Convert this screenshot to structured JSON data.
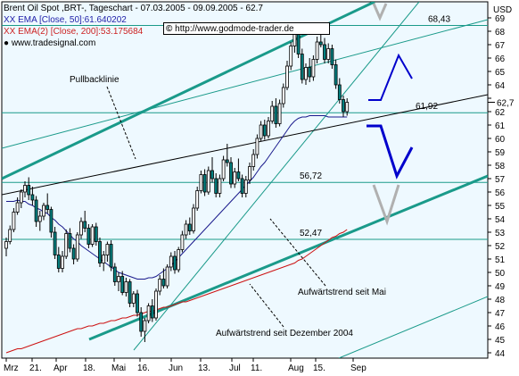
{
  "legend": {
    "title": "Brent Oil Spot ,BRT-, Tageschart - 07.03.2005 - 09.09.2005 - 62.7",
    "ema50": "XX EMA [Close, 50]:61.640202",
    "ema200": "XX EMA(2) [Close, 200]:53.175684",
    "brand": "www.tradesignal.com"
  },
  "copyright": {
    "symbol": "©",
    "url": "http://www.godmode-trader.de"
  },
  "colors": {
    "background": "#eef9ff",
    "candle_fill": "#008080",
    "candle_outline": "#000000",
    "teal_channel": "#1a9a8a",
    "ema50": "#1a1a8c",
    "ema200": "#cc1111",
    "arrow_blue": "#0000cc",
    "arrow_gray": "#b0b0b0"
  },
  "chart_data": {
    "type": "candlestick",
    "title": "Brent Oil Spot ,BRT-, Tageschart - 07.03.2005 - 09.09.2005 - 62.7",
    "ylabel": "USD",
    "ylim": [
      44,
      69
    ],
    "y_ticks": [
      44,
      45,
      46,
      47,
      48,
      49,
      50,
      51,
      52,
      53,
      54,
      55,
      56,
      57,
      58,
      59,
      60,
      61,
      62,
      63,
      64,
      65,
      66,
      67,
      68,
      69
    ],
    "x_tick_labels": [
      "Mrz",
      "21.",
      "Apr",
      "18.",
      "Mai",
      "16.",
      "Jun",
      "13.",
      "Jul",
      "11.",
      "Aug",
      "15.",
      "Sep"
    ],
    "last_price": 62.7,
    "series": [
      {
        "name": "Brent Oil Spot",
        "ohlc": [
          [
            51.8,
            52.6,
            51.2,
            52.3
          ],
          [
            52.3,
            53.5,
            52.1,
            53.2
          ],
          [
            53.2,
            54.8,
            53.0,
            54.5
          ],
          [
            54.5,
            55.6,
            54.3,
            55.2
          ],
          [
            55.2,
            56.2,
            54.8,
            56.0
          ],
          [
            56.0,
            56.8,
            55.6,
            56.5
          ],
          [
            56.5,
            57.1,
            55.4,
            55.8
          ],
          [
            55.8,
            56.4,
            55.0,
            55.4
          ],
          [
            55.4,
            55.7,
            53.4,
            53.8
          ],
          [
            53.8,
            54.6,
            53.1,
            54.2
          ],
          [
            54.2,
            55.2,
            53.9,
            55.0
          ],
          [
            55.0,
            55.9,
            54.4,
            54.7
          ],
          [
            54.7,
            54.9,
            52.6,
            53.0
          ],
          [
            53.0,
            53.4,
            51.0,
            51.3
          ],
          [
            51.3,
            51.9,
            50.0,
            50.3
          ],
          [
            50.3,
            51.6,
            50.0,
            51.2
          ],
          [
            51.2,
            53.2,
            51.0,
            52.9
          ],
          [
            52.9,
            53.3,
            51.5,
            51.8
          ],
          [
            51.8,
            52.1,
            50.6,
            51.0
          ],
          [
            51.0,
            53.0,
            50.8,
            52.8
          ],
          [
            52.8,
            54.1,
            52.5,
            53.8
          ],
          [
            53.8,
            54.6,
            53.0,
            53.3
          ],
          [
            53.3,
            53.6,
            51.8,
            52.1
          ],
          [
            52.1,
            53.6,
            51.9,
            53.4
          ],
          [
            53.4,
            53.7,
            52.0,
            52.3
          ],
          [
            52.3,
            52.6,
            50.4,
            50.7
          ],
          [
            50.7,
            51.6,
            50.1,
            51.3
          ],
          [
            51.3,
            52.3,
            50.8,
            52.1
          ],
          [
            52.1,
            52.4,
            50.1,
            50.4
          ],
          [
            50.4,
            50.7,
            49.0,
            49.3
          ],
          [
            49.3,
            50.0,
            48.6,
            49.7
          ],
          [
            49.7,
            50.1,
            48.3,
            48.5
          ],
          [
            48.5,
            49.6,
            48.2,
            49.3
          ],
          [
            49.3,
            49.5,
            47.4,
            47.7
          ],
          [
            47.7,
            48.6,
            47.4,
            48.4
          ],
          [
            48.4,
            48.7,
            46.7,
            47.0
          ],
          [
            47.0,
            47.4,
            45.2,
            45.6
          ],
          [
            45.6,
            46.6,
            44.8,
            46.4
          ],
          [
            46.4,
            47.7,
            46.2,
            47.5
          ],
          [
            47.5,
            48.0,
            46.3,
            46.6
          ],
          [
            46.6,
            48.8,
            46.4,
            48.6
          ],
          [
            48.6,
            49.8,
            48.3,
            49.5
          ],
          [
            49.5,
            50.3,
            48.8,
            49.0
          ],
          [
            49.0,
            50.6,
            48.8,
            50.4
          ],
          [
            50.4,
            51.5,
            50.1,
            51.2
          ],
          [
            51.2,
            51.6,
            49.9,
            50.2
          ],
          [
            50.2,
            51.9,
            50.0,
            51.7
          ],
          [
            51.7,
            53.1,
            51.5,
            52.8
          ],
          [
            52.8,
            53.9,
            52.5,
            53.6
          ],
          [
            53.6,
            54.1,
            52.8,
            53.1
          ],
          [
            53.1,
            55.1,
            52.9,
            54.8
          ],
          [
            54.8,
            56.4,
            54.6,
            56.1
          ],
          [
            56.1,
            57.6,
            55.9,
            57.3
          ],
          [
            57.3,
            57.7,
            55.7,
            56.0
          ],
          [
            56.0,
            57.9,
            55.8,
            57.6
          ],
          [
            57.6,
            58.6,
            56.7,
            57.0
          ],
          [
            57.0,
            57.4,
            55.6,
            55.9
          ],
          [
            55.9,
            57.3,
            55.6,
            57.0
          ],
          [
            57.0,
            58.7,
            56.8,
            58.4
          ],
          [
            58.4,
            59.6,
            57.9,
            58.2
          ],
          [
            58.2,
            58.6,
            56.3,
            56.6
          ],
          [
            56.6,
            57.8,
            56.3,
            57.5
          ],
          [
            57.5,
            58.5,
            56.8,
            57.0
          ],
          [
            57.0,
            57.3,
            55.6,
            55.9
          ],
          [
            55.9,
            57.2,
            55.6,
            56.9
          ],
          [
            56.9,
            58.2,
            56.6,
            57.9
          ],
          [
            57.9,
            59.2,
            57.6,
            58.8
          ],
          [
            58.8,
            60.3,
            58.5,
            60.0
          ],
          [
            60.0,
            61.3,
            59.8,
            61.0
          ],
          [
            61.0,
            61.4,
            59.9,
            60.2
          ],
          [
            60.2,
            61.6,
            60.0,
            61.3
          ],
          [
            61.3,
            62.8,
            61.1,
            62.4
          ],
          [
            62.4,
            63.0,
            60.8,
            61.1
          ],
          [
            61.1,
            62.9,
            60.9,
            62.6
          ],
          [
            62.6,
            64.1,
            62.3,
            63.8
          ],
          [
            63.8,
            65.8,
            63.6,
            65.4
          ],
          [
            65.4,
            67.2,
            65.1,
            66.9
          ],
          [
            66.9,
            68.3,
            66.4,
            67.8
          ],
          [
            67.8,
            68.1,
            66.0,
            66.3
          ],
          [
            66.3,
            66.7,
            64.1,
            64.4
          ],
          [
            64.4,
            65.6,
            64.0,
            65.3
          ],
          [
            65.3,
            66.0,
            64.2,
            64.6
          ],
          [
            64.6,
            66.2,
            64.3,
            65.9
          ],
          [
            65.9,
            67.6,
            65.6,
            67.2
          ],
          [
            67.2,
            68.4,
            66.8,
            67.0
          ],
          [
            67.0,
            67.5,
            65.6,
            65.9
          ],
          [
            65.9,
            67.1,
            65.6,
            66.7
          ],
          [
            66.7,
            67.0,
            65.2,
            65.5
          ],
          [
            65.5,
            65.9,
            63.7,
            64.0
          ],
          [
            64.0,
            64.5,
            62.6,
            62.9
          ],
          [
            62.9,
            63.2,
            61.6,
            62.0
          ],
          [
            62.0,
            63.0,
            61.7,
            62.7
          ]
        ]
      },
      {
        "name": "EMA [Close, 50]",
        "values": [
          55.3,
          55.3,
          55.3,
          55.4,
          55.3,
          55.3,
          55.1,
          55.0,
          54.8,
          54.7,
          54.5,
          54.4,
          54.1,
          53.9,
          53.6,
          53.4,
          53.1,
          52.8,
          52.5,
          52.3,
          52.0,
          51.8,
          51.6,
          51.4,
          51.2,
          51.0,
          50.8,
          50.6,
          50.4,
          50.2,
          50.0,
          49.9,
          49.8,
          49.7,
          49.6,
          49.5,
          49.5,
          49.5,
          49.6,
          49.6,
          49.7,
          49.9,
          50.1,
          50.3,
          50.5,
          50.8,
          51.1,
          51.4,
          51.7,
          52.0,
          52.3,
          52.6,
          52.9,
          53.2,
          53.5,
          53.8,
          54.1,
          54.4,
          54.7,
          55.0,
          55.3,
          55.6,
          55.9,
          56.2,
          56.5,
          56.8,
          57.1,
          57.5,
          57.9,
          58.2,
          58.6,
          59.0,
          59.4,
          59.8,
          60.2,
          60.6,
          61.0,
          61.3,
          61.5,
          61.6,
          61.6,
          61.7,
          61.7,
          61.7,
          61.7,
          61.7,
          61.6,
          61.6,
          61.6,
          61.6,
          61.6,
          61.6
        ]
      },
      {
        "name": "EMA(2) [Close, 200]",
        "values": [
          44.0,
          44.1,
          44.2,
          44.3,
          44.3,
          44.4,
          44.5,
          44.6,
          44.7,
          44.8,
          44.9,
          45.0,
          45.1,
          45.2,
          45.3,
          45.4,
          45.5,
          45.6,
          45.7,
          45.8,
          45.8,
          45.9,
          46.0,
          46.0,
          46.1,
          46.2,
          46.2,
          46.3,
          46.4,
          46.4,
          46.5,
          46.6,
          46.6,
          46.7,
          46.8,
          46.8,
          46.9,
          47.0,
          47.1,
          47.1,
          47.2,
          47.3,
          47.4,
          47.4,
          47.5,
          47.6,
          47.7,
          47.8,
          47.8,
          47.9,
          48.0,
          48.1,
          48.2,
          48.3,
          48.4,
          48.5,
          48.6,
          48.7,
          48.8,
          48.9,
          49.0,
          49.1,
          49.2,
          49.3,
          49.4,
          49.5,
          49.6,
          49.7,
          49.8,
          49.9,
          50.0,
          50.1,
          50.2,
          50.3,
          50.4,
          50.5,
          50.6,
          50.7,
          50.9,
          51.0,
          51.2,
          51.4,
          51.6,
          51.8,
          52.0,
          52.2,
          52.4,
          52.6,
          52.7,
          52.9,
          53.0,
          53.2
        ]
      }
    ],
    "horizontal_levels": [
      {
        "value": 68.43,
        "label": "68,43"
      },
      {
        "value": 61.92,
        "label": "61,92"
      },
      {
        "value": 56.72,
        "label": "56,72"
      },
      {
        "value": 52.47,
        "label": "52,47"
      }
    ],
    "annotations": [
      {
        "text": "Pullbacklinie"
      },
      {
        "text": "Aufwärtstrend seit Mai"
      },
      {
        "text": "Aufwärtstrend seit Dezember 2004"
      }
    ]
  }
}
